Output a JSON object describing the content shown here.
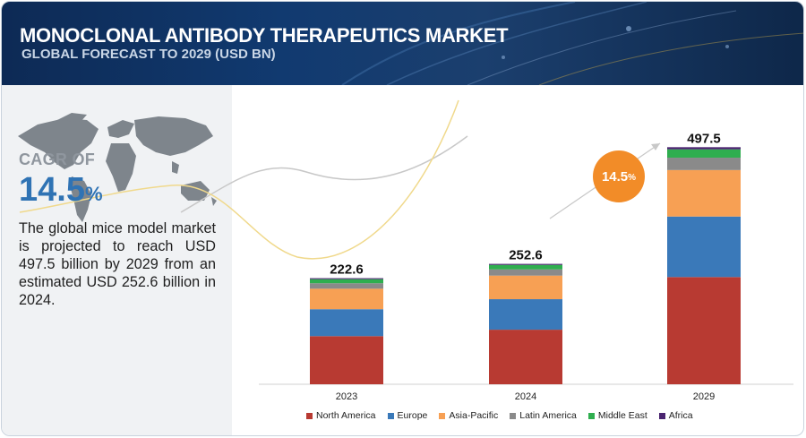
{
  "header": {
    "title": "MONOCLONAL ANTIBODY THERAPEUTICS MARKET",
    "subtitle": "GLOBAL FORECAST TO 2029 (USD BN)"
  },
  "sidebar": {
    "cagr_label": "CAGR OF",
    "cagr_value": "14.5",
    "cagr_unit": "%",
    "description": "The global mice model market is projected to reach USD 497.5 billion by 2029 from an estimated USD 252.6 billion in 2024."
  },
  "growth_bubble": {
    "value": "14.5",
    "unit": "%"
  },
  "colors": {
    "header_bg": "#113a70",
    "accent_blue": "#2f73b4",
    "bubble_orange": "#f28c28"
  },
  "chart_data": {
    "type": "bar",
    "stacked": true,
    "categories": [
      "2023",
      "2024",
      "2029"
    ],
    "totals": [
      "222.6",
      "252.6",
      "497.5"
    ],
    "series": [
      {
        "name": "North America",
        "color": "#b83a32",
        "values": [
          101.0,
          114.5,
          225.0
        ]
      },
      {
        "name": "Europe",
        "color": "#3a79b9",
        "values": [
          56.5,
          64.0,
          127.0
        ]
      },
      {
        "name": "Asia-Pacific",
        "color": "#f7a054",
        "values": [
          43.0,
          49.5,
          97.5
        ]
      },
      {
        "name": "Latin America",
        "color": "#8a8a8a",
        "values": [
          11.5,
          13.0,
          26.0
        ]
      },
      {
        "name": "Middle East",
        "color": "#2fae4f",
        "values": [
          8.5,
          9.5,
          17.5
        ]
      },
      {
        "name": "Africa",
        "color": "#4a2470",
        "values": [
          2.1,
          2.1,
          4.5
        ]
      }
    ],
    "ylim": [
      0,
      520
    ],
    "legend_position": "bottom"
  }
}
